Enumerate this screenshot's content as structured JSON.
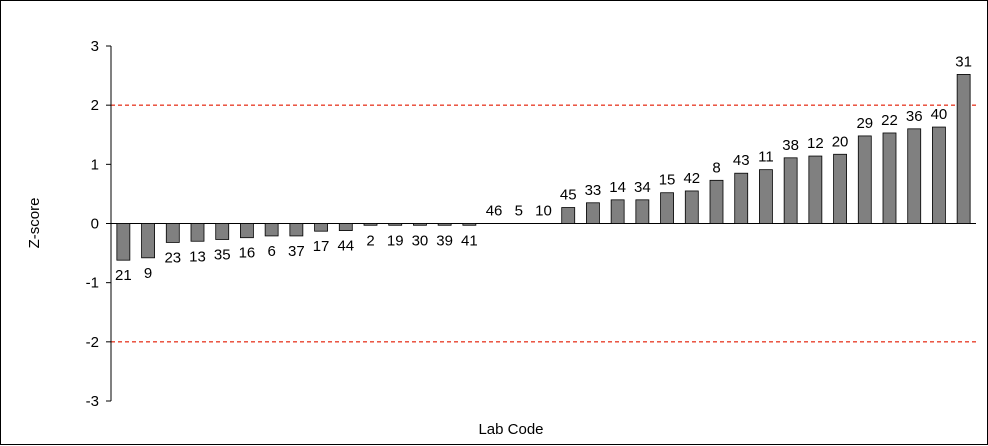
{
  "chart_data": {
    "type": "bar",
    "title": "",
    "xlabel": "Lab Code",
    "ylabel": "Z-score",
    "ylim": [
      -3,
      3
    ],
    "yticks": [
      3,
      2,
      1,
      0,
      -1,
      -2,
      -3
    ],
    "grid": false,
    "legend": "none",
    "categories": [
      "21",
      "9",
      "23",
      "13",
      "35",
      "16",
      "6",
      "37",
      "17",
      "44",
      "2",
      "19",
      "30",
      "39",
      "41",
      "46",
      "5",
      "10",
      "45",
      "33",
      "14",
      "34",
      "15",
      "42",
      "8",
      "43",
      "11",
      "38",
      "12",
      "20",
      "29",
      "22",
      "36",
      "40",
      "31"
    ],
    "values": [
      -0.62,
      -0.58,
      -0.32,
      -0.3,
      -0.27,
      -0.24,
      -0.21,
      -0.21,
      -0.13,
      -0.12,
      -0.03,
      -0.03,
      -0.03,
      -0.03,
      -0.03,
      0.0,
      0.0,
      0.0,
      0.27,
      0.35,
      0.4,
      0.4,
      0.52,
      0.55,
      0.73,
      0.85,
      0.91,
      1.11,
      1.14,
      1.17,
      1.48,
      1.53,
      1.6,
      1.63,
      2.52
    ],
    "reference_lines": [
      2,
      -2
    ],
    "bar_color": "#808080",
    "bar_stroke": "#000000",
    "reference_line_color": "#e8402c"
  }
}
